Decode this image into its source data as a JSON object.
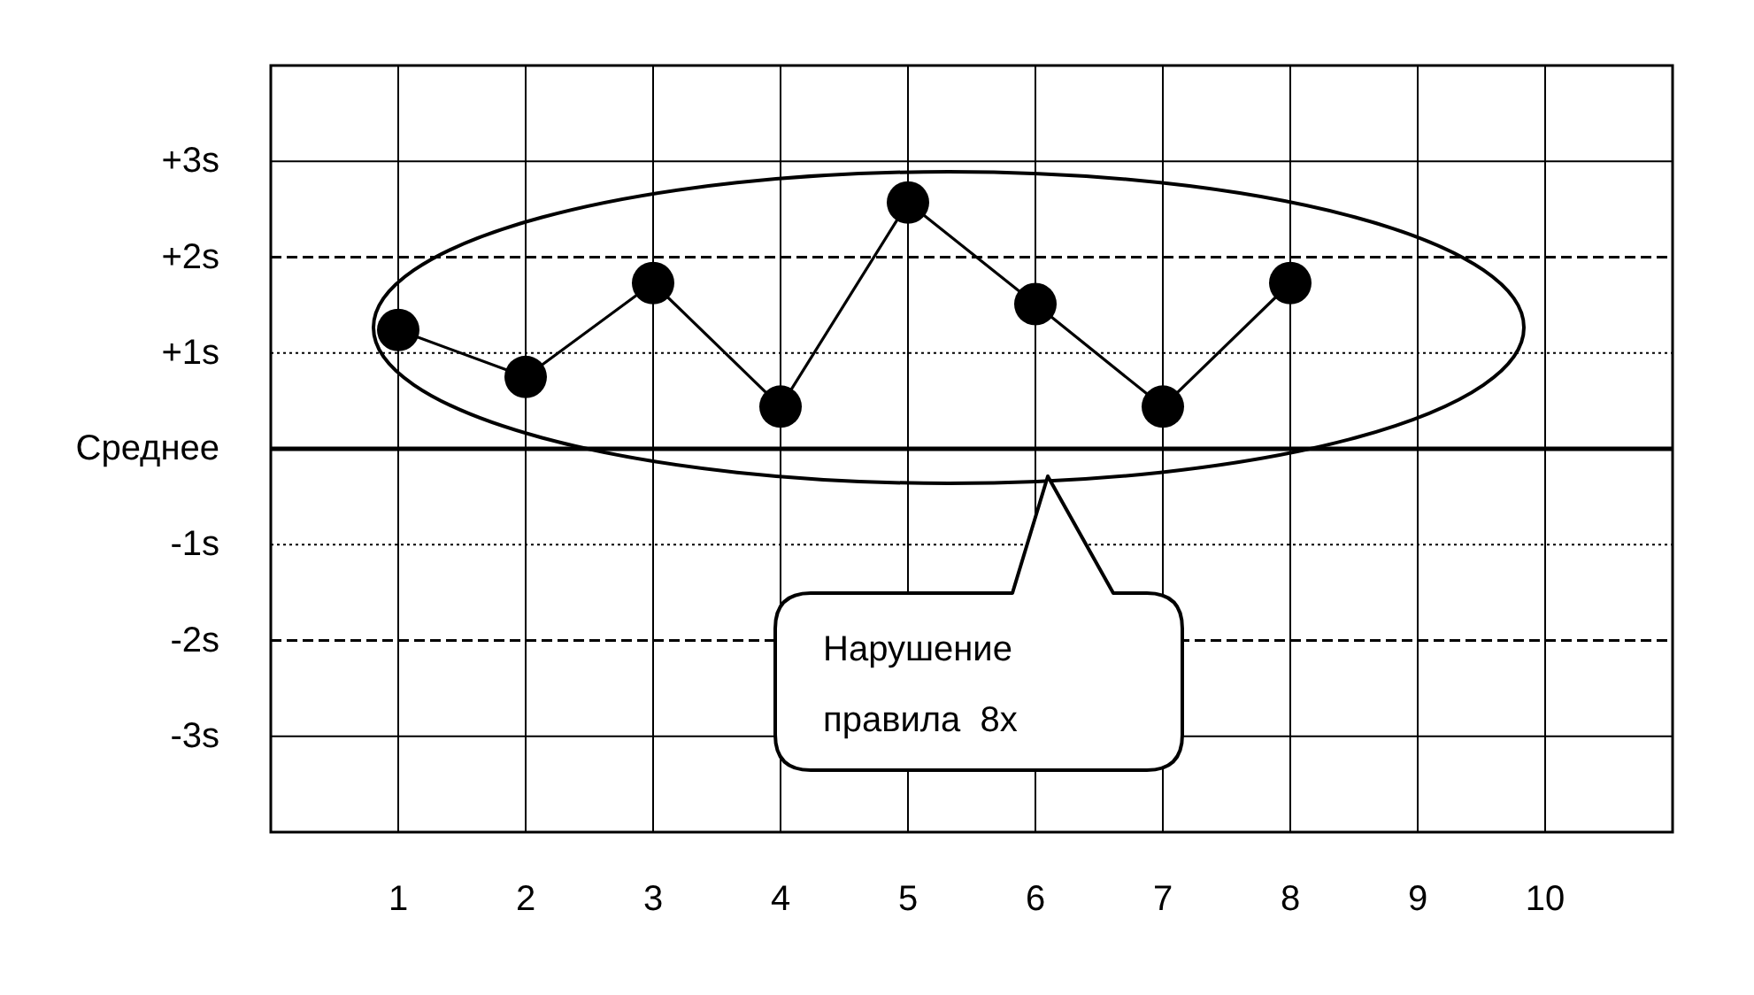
{
  "chart_data": {
    "type": "line",
    "x": [
      1,
      2,
      3,
      4,
      5,
      6,
      7,
      8
    ],
    "series": [
      {
        "color": "#000000",
        "values": [
          1.24,
          0.75,
          1.73,
          0.44,
          2.57,
          1.51,
          0.44,
          1.73
        ]
      }
    ],
    "marker": "circle",
    "line_style": "solid",
    "xlim": [
      0,
      11
    ],
    "xticks": [
      1,
      2,
      3,
      4,
      5,
      6,
      7,
      8,
      9,
      10
    ],
    "ylim": [
      -4,
      4
    ],
    "yticks": [
      {
        "value": 3,
        "label": "+3s"
      },
      {
        "value": 2,
        "label": "+2s"
      },
      {
        "value": 1,
        "label": "+1s"
      },
      {
        "value": 0,
        "label": "Среднее"
      },
      {
        "value": -1,
        "label": "-1s"
      },
      {
        "value": -2,
        "label": "-2s"
      },
      {
        "value": -3,
        "label": "-3s"
      }
    ],
    "grid": "x",
    "ref_lines": [
      {
        "axis": "y",
        "value": 0,
        "line_style": "solid"
      },
      {
        "axis": "y",
        "value": 1,
        "line_style": "dotted"
      },
      {
        "axis": "y",
        "value": -1,
        "line_style": "dotted"
      },
      {
        "axis": "y",
        "value": 2,
        "line_style": "dashed"
      },
      {
        "axis": "y",
        "value": -2,
        "line_style": "dashed"
      },
      {
        "axis": "y",
        "value": 3,
        "line_style": "solid"
      },
      {
        "axis": "y",
        "value": -3,
        "line_style": "solid"
      }
    ],
    "annotations": [
      "Нарушение\nправила  8x"
    ]
  }
}
